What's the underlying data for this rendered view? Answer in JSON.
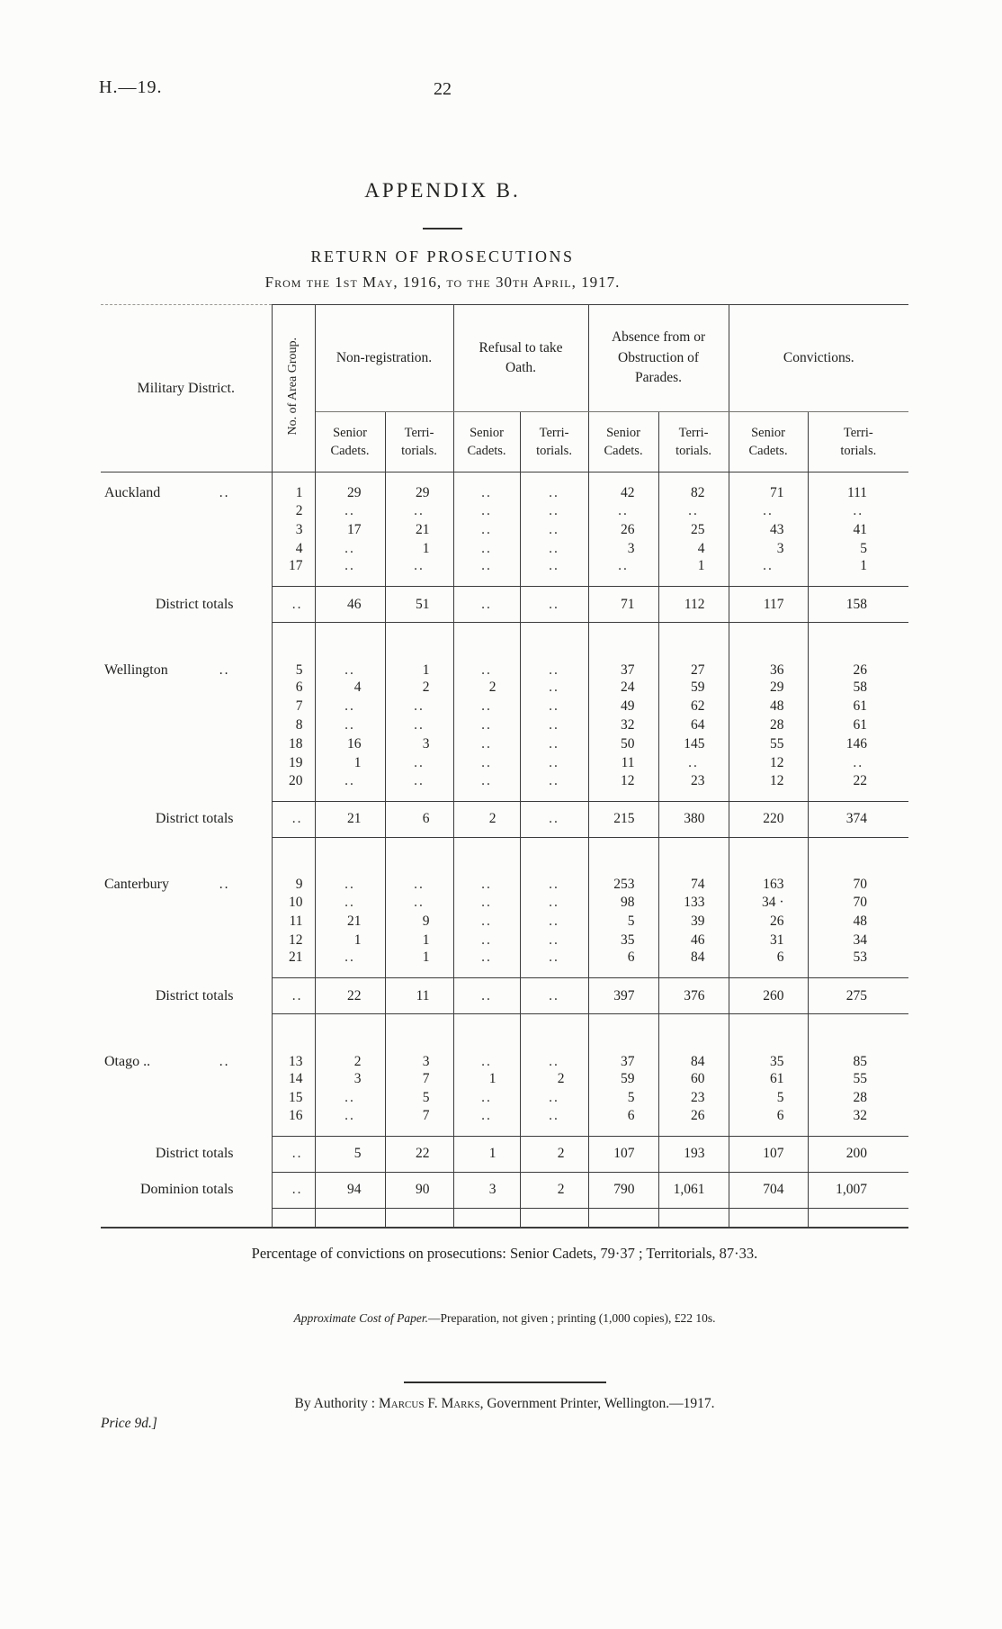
{
  "page": {
    "doc_ref": "H.—19.",
    "page_number": "22",
    "appendix": "APPENDIX B.",
    "title": "RETURN OF PROSECUTIONS",
    "date_range": "From the 1st May, 1916, to the 30th April, 1917."
  },
  "table": {
    "military_district_header": "Military District.",
    "area_group_header": "No. of Area Group.",
    "group_headers": [
      "Non-registration.",
      "Refusal to take Oath.",
      "Absence from or Obstruction of Parades.",
      "Convictions."
    ],
    "sub_headers": [
      "Senior\nCadets.",
      "Terri-\ntorials."
    ],
    "district_totals_label": "District totals",
    "dominion_totals_label": "Dominion totals",
    "sections": [
      {
        "district": "Auckland",
        "leader_dots": "..",
        "rows": [
          {
            "area_group": "1",
            "values": [
              "29",
              "29",
              "..",
              "..",
              "42",
              "82",
              "71",
              "111"
            ]
          },
          {
            "area_group": "2",
            "values": [
              "..",
              "..",
              "..",
              "..",
              "..",
              "..",
              "..",
              ".."
            ]
          },
          {
            "area_group": "3",
            "values": [
              "17",
              "21",
              "..",
              "..",
              "26",
              "25",
              "43",
              "41"
            ]
          },
          {
            "area_group": "4",
            "values": [
              "..",
              "1",
              "..",
              "..",
              "3",
              "4",
              "3",
              "5"
            ]
          },
          {
            "area_group": "17",
            "values": [
              "..",
              "..",
              "..",
              "..",
              "..",
              "1",
              "..",
              "1"
            ]
          }
        ],
        "district_totals": {
          "area_group": "..",
          "values": [
            "46",
            "51",
            "..",
            "..",
            "71",
            "112",
            "117",
            "158"
          ]
        }
      },
      {
        "district": "Wellington",
        "leader_dots": "..",
        "rows": [
          {
            "area_group": "5",
            "values": [
              "..",
              "1",
              "..",
              "..",
              "37",
              "27",
              "36",
              "26"
            ]
          },
          {
            "area_group": "6",
            "values": [
              "4",
              "2",
              "2",
              "..",
              "24",
              "59",
              "29",
              "58"
            ]
          },
          {
            "area_group": "7",
            "values": [
              "..",
              "..",
              "..",
              "..",
              "49",
              "62",
              "48",
              "61"
            ]
          },
          {
            "area_group": "8",
            "values": [
              "..",
              "..",
              "..",
              "..",
              "32",
              "64",
              "28",
              "61"
            ]
          },
          {
            "area_group": "18",
            "values": [
              "16",
              "3",
              "..",
              "..",
              "50",
              "145",
              "55",
              "146"
            ]
          },
          {
            "area_group": "19",
            "values": [
              "1",
              "..",
              "..",
              "..",
              "11",
              "..",
              "12",
              ".."
            ]
          },
          {
            "area_group": "20",
            "values": [
              "..",
              "..",
              "..",
              "..",
              "12",
              "23",
              "12",
              "22"
            ]
          }
        ],
        "district_totals": {
          "area_group": "..",
          "values": [
            "21",
            "6",
            "2",
            "..",
            "215",
            "380",
            "220",
            "374"
          ]
        }
      },
      {
        "district": "Canterbury",
        "leader_dots": "..",
        "rows": [
          {
            "area_group": "9",
            "values": [
              "..",
              "..",
              "..",
              "..",
              "253",
              "74",
              "163",
              "70"
            ]
          },
          {
            "area_group": "10",
            "values": [
              "..",
              "..",
              "..",
              "..",
              "98",
              "133",
              "34 ·",
              "70"
            ]
          },
          {
            "area_group": "11",
            "values": [
              "21",
              "9",
              "..",
              "..",
              "5",
              "39",
              "26",
              "48"
            ]
          },
          {
            "area_group": "12",
            "values": [
              "1",
              "1",
              "..",
              "..",
              "35",
              "46",
              "31",
              "34"
            ]
          },
          {
            "area_group": "21",
            "values": [
              "..",
              "1",
              "..",
              "..",
              "6",
              "84",
              "6",
              "53"
            ]
          }
        ],
        "district_totals": {
          "area_group": "..",
          "values": [
            "22",
            "11",
            "..",
            "..",
            "397",
            "376",
            "260",
            "275"
          ]
        }
      },
      {
        "district": "Otago ..",
        "leader_dots": "..",
        "rows": [
          {
            "area_group": "13",
            "values": [
              "2",
              "3",
              "..",
              "..",
              "37",
              "84",
              "35",
              "85"
            ]
          },
          {
            "area_group": "14",
            "values": [
              "3",
              "7",
              "1",
              "2",
              "59",
              "60",
              "61",
              "55"
            ]
          },
          {
            "area_group": "15",
            "values": [
              "..",
              "5",
              "..",
              "..",
              "5",
              "23",
              "5",
              "28"
            ]
          },
          {
            "area_group": "16",
            "values": [
              "..",
              "7",
              "..",
              "..",
              "6",
              "26",
              "6",
              "32"
            ]
          }
        ],
        "district_totals": {
          "area_group": "..",
          "values": [
            "5",
            "22",
            "1",
            "2",
            "107",
            "193",
            "107",
            "200"
          ]
        }
      }
    ],
    "dominion_totals": {
      "area_group": "..",
      "values": [
        "94",
        "90",
        "3",
        "2",
        "790",
        "1,061",
        "704",
        "1,007"
      ]
    }
  },
  "notes": {
    "percentage_line": "Percentage of convictions on prosecutions:  Senior Cadets, 79·37 ;  Territorials, 87·33.",
    "cost_line_italic": "Approximate Cost of Paper.",
    "cost_line_rest": "—Preparation, not given ;  printing (1,000 copies), £22 10s.",
    "authority_prefix": "By  Authority :  ",
    "authority_name": "Marcus F. Marks",
    "authority_suffix": ",  Government  Printer,  Wellington.—1917.",
    "price": "Price 9d.]"
  }
}
